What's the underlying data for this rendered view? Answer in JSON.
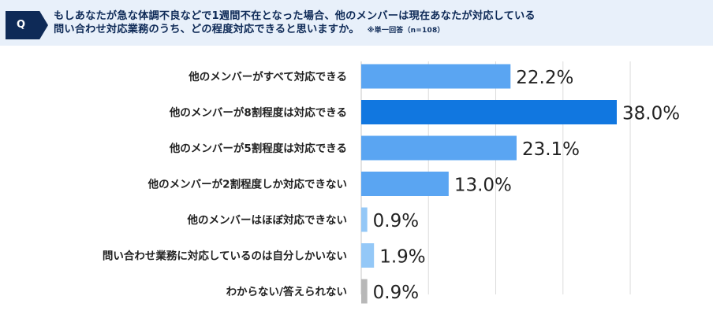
{
  "question": {
    "badge": "Q",
    "line1": "もしあなたが急な体調不良などで1週間不在となった場合、他のメンバーは現在あなたが対応している",
    "line2": "問い合わせ対応業務のうち、どの程度対応できると思いますか。",
    "note": "※単一回答（n=108）"
  },
  "chart_data": {
    "type": "bar",
    "orientation": "horizontal",
    "categories": [
      "他のメンバーがすべて対応できる",
      "他のメンバーが8割程度は対応できる",
      "他のメンバーが5割程度は対応できる",
      "他のメンバーが2割程度しか対応できない",
      "他のメンバーはほぼ対応できない",
      "問い合わせ業務に対応しているのは自分しかいない",
      "わからない/答えられない"
    ],
    "values": [
      22.2,
      38.0,
      23.1,
      13.0,
      0.9,
      1.9,
      0.9
    ],
    "value_labels": [
      "22.2%",
      "38.0%",
      "23.1%",
      "13.0%",
      "0.9%",
      "1.9%",
      "0.9%"
    ],
    "colors": [
      "#5aa5f2",
      "#1177e0",
      "#5aa5f2",
      "#5aa5f2",
      "#94c8f7",
      "#94c8f7",
      "#b8b8b8"
    ],
    "xlim": [
      0,
      40
    ],
    "grid": true
  }
}
